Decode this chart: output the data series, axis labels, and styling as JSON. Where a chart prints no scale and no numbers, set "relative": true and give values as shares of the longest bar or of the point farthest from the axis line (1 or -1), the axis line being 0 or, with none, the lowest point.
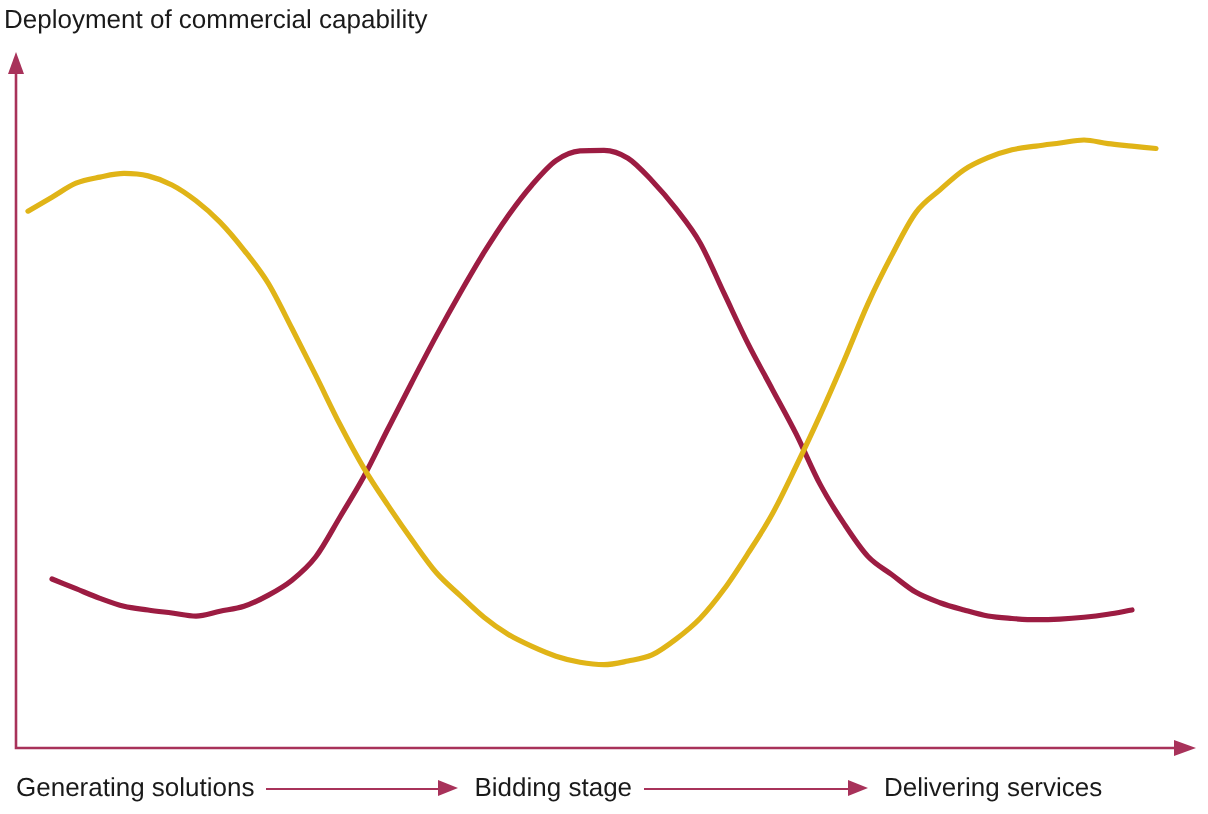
{
  "chart_data": {
    "type": "line",
    "ylabel": "Deployment of commercial capability",
    "annotations": [
      "Generating solutions",
      "Bidding stage",
      "Delivering services"
    ],
    "relative": true,
    "categories": [
      null,
      null,
      null,
      null,
      null,
      null,
      null,
      null,
      null,
      null,
      null,
      null,
      null,
      null,
      null,
      null,
      null,
      null,
      null,
      null,
      null,
      null,
      null,
      null,
      null,
      null,
      null,
      null,
      null,
      null,
      null,
      null,
      null,
      null,
      null,
      null,
      null,
      null,
      null,
      null,
      null,
      null,
      null,
      null,
      null,
      null,
      null,
      null
    ],
    "series": [
      {
        "color": "#e0b417",
        "values": [
          0.883,
          0.906,
          0.929,
          0.939,
          0.945,
          0.941,
          0.926,
          0.9,
          0.865,
          0.819,
          0.765,
          0.69,
          0.612,
          0.532,
          0.46,
          0.399,
          0.342,
          0.289,
          0.251,
          0.215,
          0.187,
          0.167,
          0.151,
          0.141,
          0.137,
          0.143,
          0.153,
          0.179,
          0.213,
          0.261,
          0.32,
          0.384,
          0.463,
          0.547,
          0.637,
          0.731,
          0.811,
          0.881,
          0.918,
          0.951,
          0.971,
          0.984,
          0.99,
          0.995,
          1.0,
          0.994,
          0.99,
          0.986
        ]
      },
      {
        "color": "#9c1c42",
        "values": [
          null,
          0.278,
          0.262,
          0.246,
          0.233,
          0.227,
          0.222,
          0.217,
          0.225,
          0.233,
          0.251,
          0.276,
          0.315,
          0.38,
          0.447,
          0.525,
          0.602,
          0.677,
          0.748,
          0.815,
          0.875,
          0.926,
          0.966,
          0.982,
          0.983,
          0.97,
          0.933,
          0.887,
          0.831,
          0.748,
          0.665,
          0.591,
          0.517,
          0.434,
          0.369,
          0.315,
          0.285,
          0.256,
          0.239,
          0.227,
          0.217,
          0.213,
          0.211,
          0.212,
          0.215,
          0.22,
          0.227,
          null
        ]
      }
    ]
  }
}
